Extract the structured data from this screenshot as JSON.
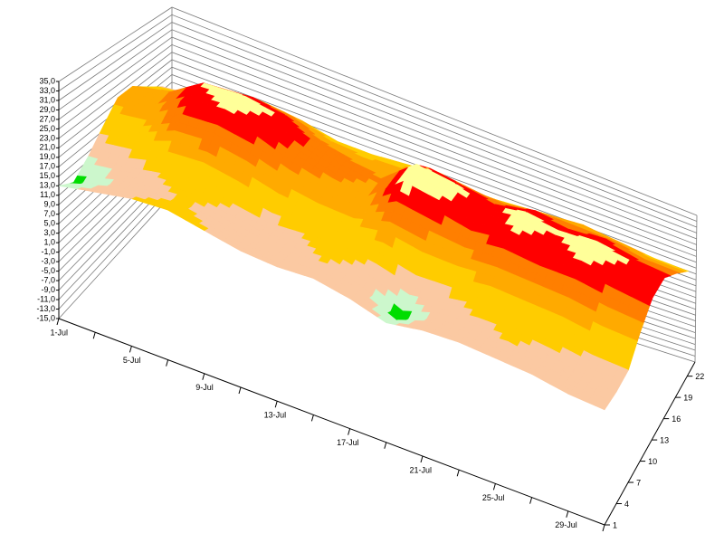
{
  "chart_data": {
    "type": "surface3d",
    "categories": [
      "1-Jul",
      null,
      "5-Jul",
      null,
      "9-Jul",
      null,
      "13-Jul",
      null,
      "17-Jul",
      null,
      "21-Jul",
      null,
      "25-Jul",
      null,
      "29-Jul",
      null
    ],
    "y": [
      1,
      4,
      7,
      10,
      13,
      16,
      19,
      22
    ],
    "ylim": [
      1,
      24
    ],
    "yticks": [
      1,
      4,
      7,
      10,
      13,
      16,
      19,
      22
    ],
    "zlim": [
      -15,
      35
    ],
    "zticks": [
      {
        "value": -15,
        "label": "-15,0"
      },
      {
        "value": -13,
        "label": "-13,0"
      },
      {
        "value": -11,
        "label": "-11,0"
      },
      {
        "value": -9,
        "label": "-9,0"
      },
      {
        "value": -7,
        "label": "-7,0"
      },
      {
        "value": -5,
        "label": "-5,0"
      },
      {
        "value": -3,
        "label": "-3,0"
      },
      {
        "value": -1,
        "label": "-1,0"
      },
      {
        "value": 1,
        "label": "1,0"
      },
      {
        "value": 3,
        "label": "3,0"
      },
      {
        "value": 5,
        "label": "5,0"
      },
      {
        "value": 7,
        "label": "7,0"
      },
      {
        "value": 9,
        "label": "9,0"
      },
      {
        "value": 11,
        "label": "11,0"
      },
      {
        "value": 13,
        "label": "13,0"
      },
      {
        "value": 15,
        "label": "15,0"
      },
      {
        "value": 17,
        "label": "17,0"
      },
      {
        "value": 19,
        "label": "19,0"
      },
      {
        "value": 21,
        "label": "21,0"
      },
      {
        "value": 23,
        "label": "23,0"
      },
      {
        "value": 25,
        "label": "25,0"
      },
      {
        "value": 27,
        "label": "27,0"
      },
      {
        "value": 29,
        "label": "29,0"
      },
      {
        "value": 31,
        "label": "31,0"
      },
      {
        "value": 33,
        "label": "33,0"
      },
      {
        "value": 35,
        "label": "35,0"
      }
    ],
    "grid": true,
    "color_levels": [
      {
        "from": -15,
        "color": "#00dd00"
      },
      {
        "from": 12,
        "color": "#ccf7cc"
      },
      {
        "from": 14,
        "color": "#fbc9a2"
      },
      {
        "from": 17,
        "color": "#ffcc00"
      },
      {
        "from": 21,
        "color": "#ffaa00"
      },
      {
        "from": 24,
        "color": "#ff7f00"
      },
      {
        "from": 27,
        "color": "#ff0000"
      },
      {
        "from": 30,
        "color": "#ffff99"
      }
    ],
    "values": [
      [
        13,
        11,
        14,
        18,
        22,
        22,
        19,
        16
      ],
      [
        15,
        14,
        15,
        20,
        23,
        24,
        21,
        17
      ],
      [
        17,
        16,
        17,
        24,
        29,
        30,
        26,
        21
      ],
      [
        18,
        17,
        18,
        25,
        30,
        31,
        27,
        22
      ],
      [
        17,
        16,
        17,
        24,
        29,
        30,
        26,
        21
      ],
      [
        16,
        15,
        16,
        22,
        26,
        27,
        23,
        19
      ],
      [
        16,
        16,
        17,
        21,
        24,
        25,
        22,
        19
      ],
      [
        17,
        17,
        18,
        21,
        23,
        24,
        22,
        20
      ],
      [
        16,
        15,
        17,
        24,
        31,
        32,
        27,
        21
      ],
      [
        14,
        11,
        15,
        23,
        30,
        31,
        26,
        19
      ],
      [
        16,
        15,
        16,
        23,
        28,
        29,
        25,
        20
      ],
      [
        17,
        16,
        18,
        24,
        30,
        31,
        27,
        21
      ],
      [
        17,
        17,
        18,
        24,
        29,
        30,
        26,
        22
      ],
      [
        17,
        16,
        18,
        24,
        30,
        31,
        27,
        21
      ],
      [
        16,
        15,
        17,
        23,
        29,
        30,
        25,
        20
      ],
      [
        16,
        16,
        17,
        23,
        28,
        29,
        25,
        20
      ]
    ]
  }
}
